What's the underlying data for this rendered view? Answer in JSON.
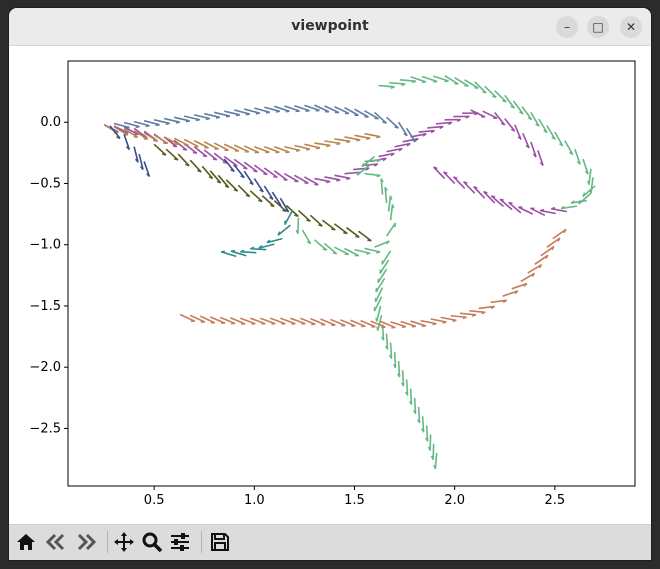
{
  "window": {
    "title": "viewpoint",
    "controls": {
      "minimize": "–",
      "maximize": "□",
      "close": "✕"
    }
  },
  "toolbar": {
    "items": [
      "home-icon",
      "back-icon",
      "forward-icon",
      "pan-icon",
      "zoom-icon",
      "configure-subplots-icon",
      "save-icon"
    ]
  },
  "chart_data": {
    "type": "quiver",
    "title": "",
    "xlabel": "",
    "ylabel": "",
    "xlim": [
      0.07,
      2.9
    ],
    "ylim": [
      -2.97,
      0.5
    ],
    "xticks": [
      0.5,
      1.0,
      1.5,
      2.0,
      2.5
    ],
    "xtick_labels": [
      "0.5",
      "1.0",
      "1.5",
      "2.0",
      "2.5"
    ],
    "yticks": [
      0.0,
      -0.5,
      -1.0,
      -1.5,
      -2.0,
      -2.5
    ],
    "ytick_labels": [
      "0.0",
      "−0.5",
      "−1.0",
      "−1.5",
      "−2.0",
      "−2.5"
    ],
    "grid": false,
    "legend": "none",
    "colors": [
      "#9b4fa5",
      "#b8864c",
      "#5f7da0",
      "#64b983",
      "#5a5a1e",
      "#3a4f8a",
      "#2f8a8a",
      "#c77b5a"
    ],
    "arrow_length": 0.06,
    "tracks": [
      {
        "color": "#9b4fa5",
        "points": [
          [
            0.25,
            -0.02
          ],
          [
            0.4,
            -0.05
          ],
          [
            0.55,
            -0.12
          ],
          [
            0.7,
            -0.2
          ],
          [
            0.85,
            -0.28
          ],
          [
            1.0,
            -0.35
          ],
          [
            1.15,
            -0.42
          ],
          [
            1.3,
            -0.46
          ],
          [
            1.45,
            -0.42
          ],
          [
            1.58,
            -0.32
          ],
          [
            1.7,
            -0.2
          ],
          [
            1.82,
            -0.08
          ],
          [
            1.95,
            0.02
          ],
          [
            2.08,
            0.1
          ],
          [
            2.2,
            0.08
          ],
          [
            2.3,
            -0.02
          ],
          [
            2.38,
            -0.16
          ],
          [
            2.45,
            -0.3
          ]
        ]
      },
      {
        "color": "#b8864c",
        "points": [
          [
            0.25,
            -0.02
          ],
          [
            0.4,
            -0.07
          ],
          [
            0.55,
            -0.12
          ],
          [
            0.7,
            -0.15
          ],
          [
            0.85,
            -0.18
          ],
          [
            1.0,
            -0.2
          ],
          [
            1.15,
            -0.2
          ],
          [
            1.3,
            -0.17
          ],
          [
            1.45,
            -0.12
          ],
          [
            1.6,
            -0.08
          ]
        ]
      },
      {
        "color": "#5f7da0",
        "points": [
          [
            0.3,
            -0.01
          ],
          [
            0.5,
            0.02
          ],
          [
            0.7,
            0.06
          ],
          [
            0.9,
            0.1
          ],
          [
            1.1,
            0.13
          ],
          [
            1.3,
            0.14
          ],
          [
            1.45,
            0.12
          ],
          [
            1.6,
            0.08
          ],
          [
            1.72,
            0.0
          ],
          [
            1.8,
            -0.1
          ]
        ]
      },
      {
        "color": "#64b983",
        "points": [
          [
            1.62,
            0.3
          ],
          [
            1.78,
            0.37
          ],
          [
            1.95,
            0.38
          ],
          [
            2.1,
            0.33
          ],
          [
            2.25,
            0.22
          ],
          [
            2.38,
            0.08
          ],
          [
            2.5,
            -0.08
          ],
          [
            2.6,
            -0.22
          ],
          [
            2.68,
            -0.38
          ],
          [
            2.7,
            -0.52
          ],
          [
            2.66,
            -0.64
          ],
          [
            2.56,
            -0.73
          ]
        ]
      },
      {
        "color": "#9b4fa5",
        "points": [
          [
            2.56,
            -0.73
          ],
          [
            2.45,
            -0.76
          ],
          [
            2.33,
            -0.74
          ],
          [
            2.2,
            -0.66
          ],
          [
            2.1,
            -0.58
          ],
          [
            2.0,
            -0.5
          ],
          [
            1.9,
            -0.42
          ]
        ]
      },
      {
        "color": "#5a5a1e",
        "points": [
          [
            0.5,
            -0.18
          ],
          [
            0.62,
            -0.26
          ],
          [
            0.74,
            -0.36
          ],
          [
            0.86,
            -0.47
          ],
          [
            0.98,
            -0.56
          ],
          [
            1.1,
            -0.64
          ],
          [
            1.22,
            -0.72
          ],
          [
            1.34,
            -0.8
          ],
          [
            1.46,
            -0.86
          ],
          [
            1.58,
            -0.92
          ]
        ]
      },
      {
        "color": "#3a4f8a",
        "points": [
          [
            0.28,
            -0.03
          ],
          [
            0.35,
            -0.1
          ],
          [
            0.4,
            -0.2
          ],
          [
            0.45,
            -0.32
          ],
          [
            0.48,
            -0.38
          ]
        ]
      },
      {
        "color": "#3a4f8a",
        "points": [
          [
            0.85,
            -0.3
          ],
          [
            0.95,
            -0.4
          ],
          [
            1.05,
            -0.52
          ],
          [
            1.13,
            -0.62
          ],
          [
            1.19,
            -0.7
          ]
        ]
      },
      {
        "color": "#2f8a8a",
        "points": [
          [
            1.19,
            -0.72
          ],
          [
            1.18,
            -0.84
          ],
          [
            1.14,
            -0.95
          ],
          [
            1.06,
            -1.04
          ],
          [
            0.96,
            -1.09
          ],
          [
            0.86,
            -1.1
          ]
        ]
      },
      {
        "color": "#64b983",
        "points": [
          [
            1.22,
            -0.78
          ],
          [
            1.24,
            -0.88
          ],
          [
            1.3,
            -0.96
          ],
          [
            1.4,
            -1.02
          ],
          [
            1.5,
            -1.04
          ],
          [
            1.6,
            -1.02
          ],
          [
            1.66,
            -0.93
          ],
          [
            1.68,
            -0.8
          ],
          [
            1.66,
            -0.66
          ],
          [
            1.62,
            -0.52
          ]
        ]
      },
      {
        "color": "#64b983",
        "points": [
          [
            1.68,
            -1.05
          ],
          [
            1.66,
            -1.2
          ],
          [
            1.64,
            -1.35
          ],
          [
            1.63,
            -1.5
          ],
          [
            1.64,
            -1.65
          ],
          [
            1.68,
            -1.8
          ],
          [
            1.72,
            -1.95
          ],
          [
            1.76,
            -2.1
          ],
          [
            1.8,
            -2.25
          ],
          [
            1.84,
            -2.4
          ],
          [
            1.88,
            -2.55
          ],
          [
            1.91,
            -2.7
          ],
          [
            1.93,
            -2.82
          ]
        ]
      },
      {
        "color": "#c77b5a",
        "points": [
          [
            0.63,
            -1.57
          ],
          [
            0.78,
            -1.59
          ],
          [
            0.93,
            -1.6
          ],
          [
            1.08,
            -1.6
          ],
          [
            1.23,
            -1.6
          ],
          [
            1.38,
            -1.61
          ],
          [
            1.53,
            -1.62
          ],
          [
            1.68,
            -1.63
          ],
          [
            1.83,
            -1.62
          ],
          [
            1.98,
            -1.58
          ],
          [
            2.12,
            -1.52
          ],
          [
            2.24,
            -1.42
          ],
          [
            2.33,
            -1.3
          ],
          [
            2.4,
            -1.16
          ],
          [
            2.46,
            -1.02
          ],
          [
            2.52,
            -0.88
          ]
        ]
      },
      {
        "color": "#64b983",
        "points": [
          [
            1.55,
            -0.32
          ],
          [
            1.6,
            -0.28
          ],
          [
            1.55,
            -0.42
          ],
          [
            1.6,
            -0.4
          ]
        ]
      }
    ]
  }
}
